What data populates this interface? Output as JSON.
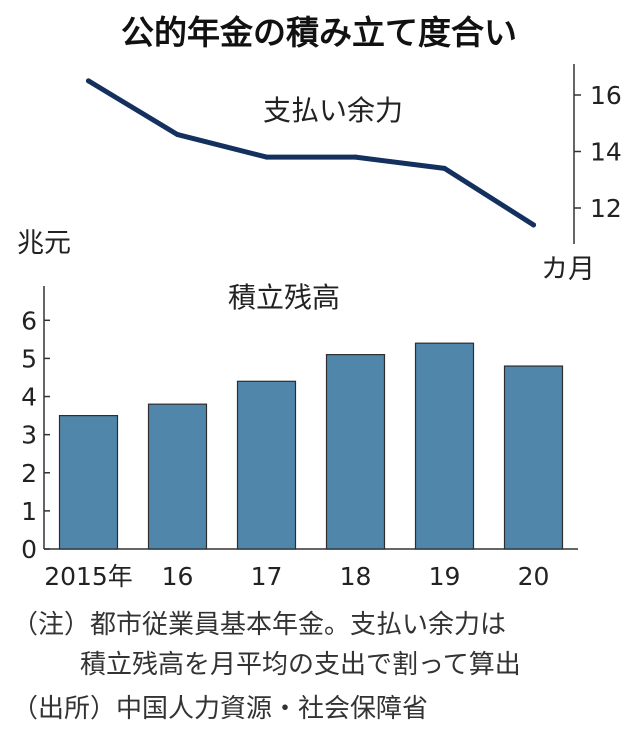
{
  "title": "公的年金の積み立て度合い",
  "chart_data": [
    {
      "type": "line",
      "title": "支払い余力",
      "unit": "カ月",
      "categories": [
        "2015年",
        "16",
        "17",
        "18",
        "19",
        "20"
      ],
      "values": [
        16.5,
        14.6,
        13.8,
        13.8,
        13.4,
        11.4
      ],
      "yticks": [
        12,
        14,
        16
      ],
      "axis_side": "right",
      "grid": false,
      "color": "#14305e"
    },
    {
      "type": "bar",
      "title": "積立残高",
      "unit": "兆元",
      "categories": [
        "2015年",
        "16",
        "17",
        "18",
        "19",
        "20"
      ],
      "values": [
        3.5,
        3.8,
        4.4,
        5.1,
        5.4,
        4.8
      ],
      "ylim": [
        0,
        6.9
      ],
      "yticks": [
        0,
        1,
        2,
        3,
        4,
        5,
        6
      ],
      "grid": false,
      "color": "#4f86aa"
    }
  ],
  "notes": {
    "note_line1": "（注）都市従業員基本年金。支払い余力は",
    "note_line2": "積立残高を月平均の支出で割って算出",
    "source": "（出所）中国人力資源・社会保障省"
  }
}
